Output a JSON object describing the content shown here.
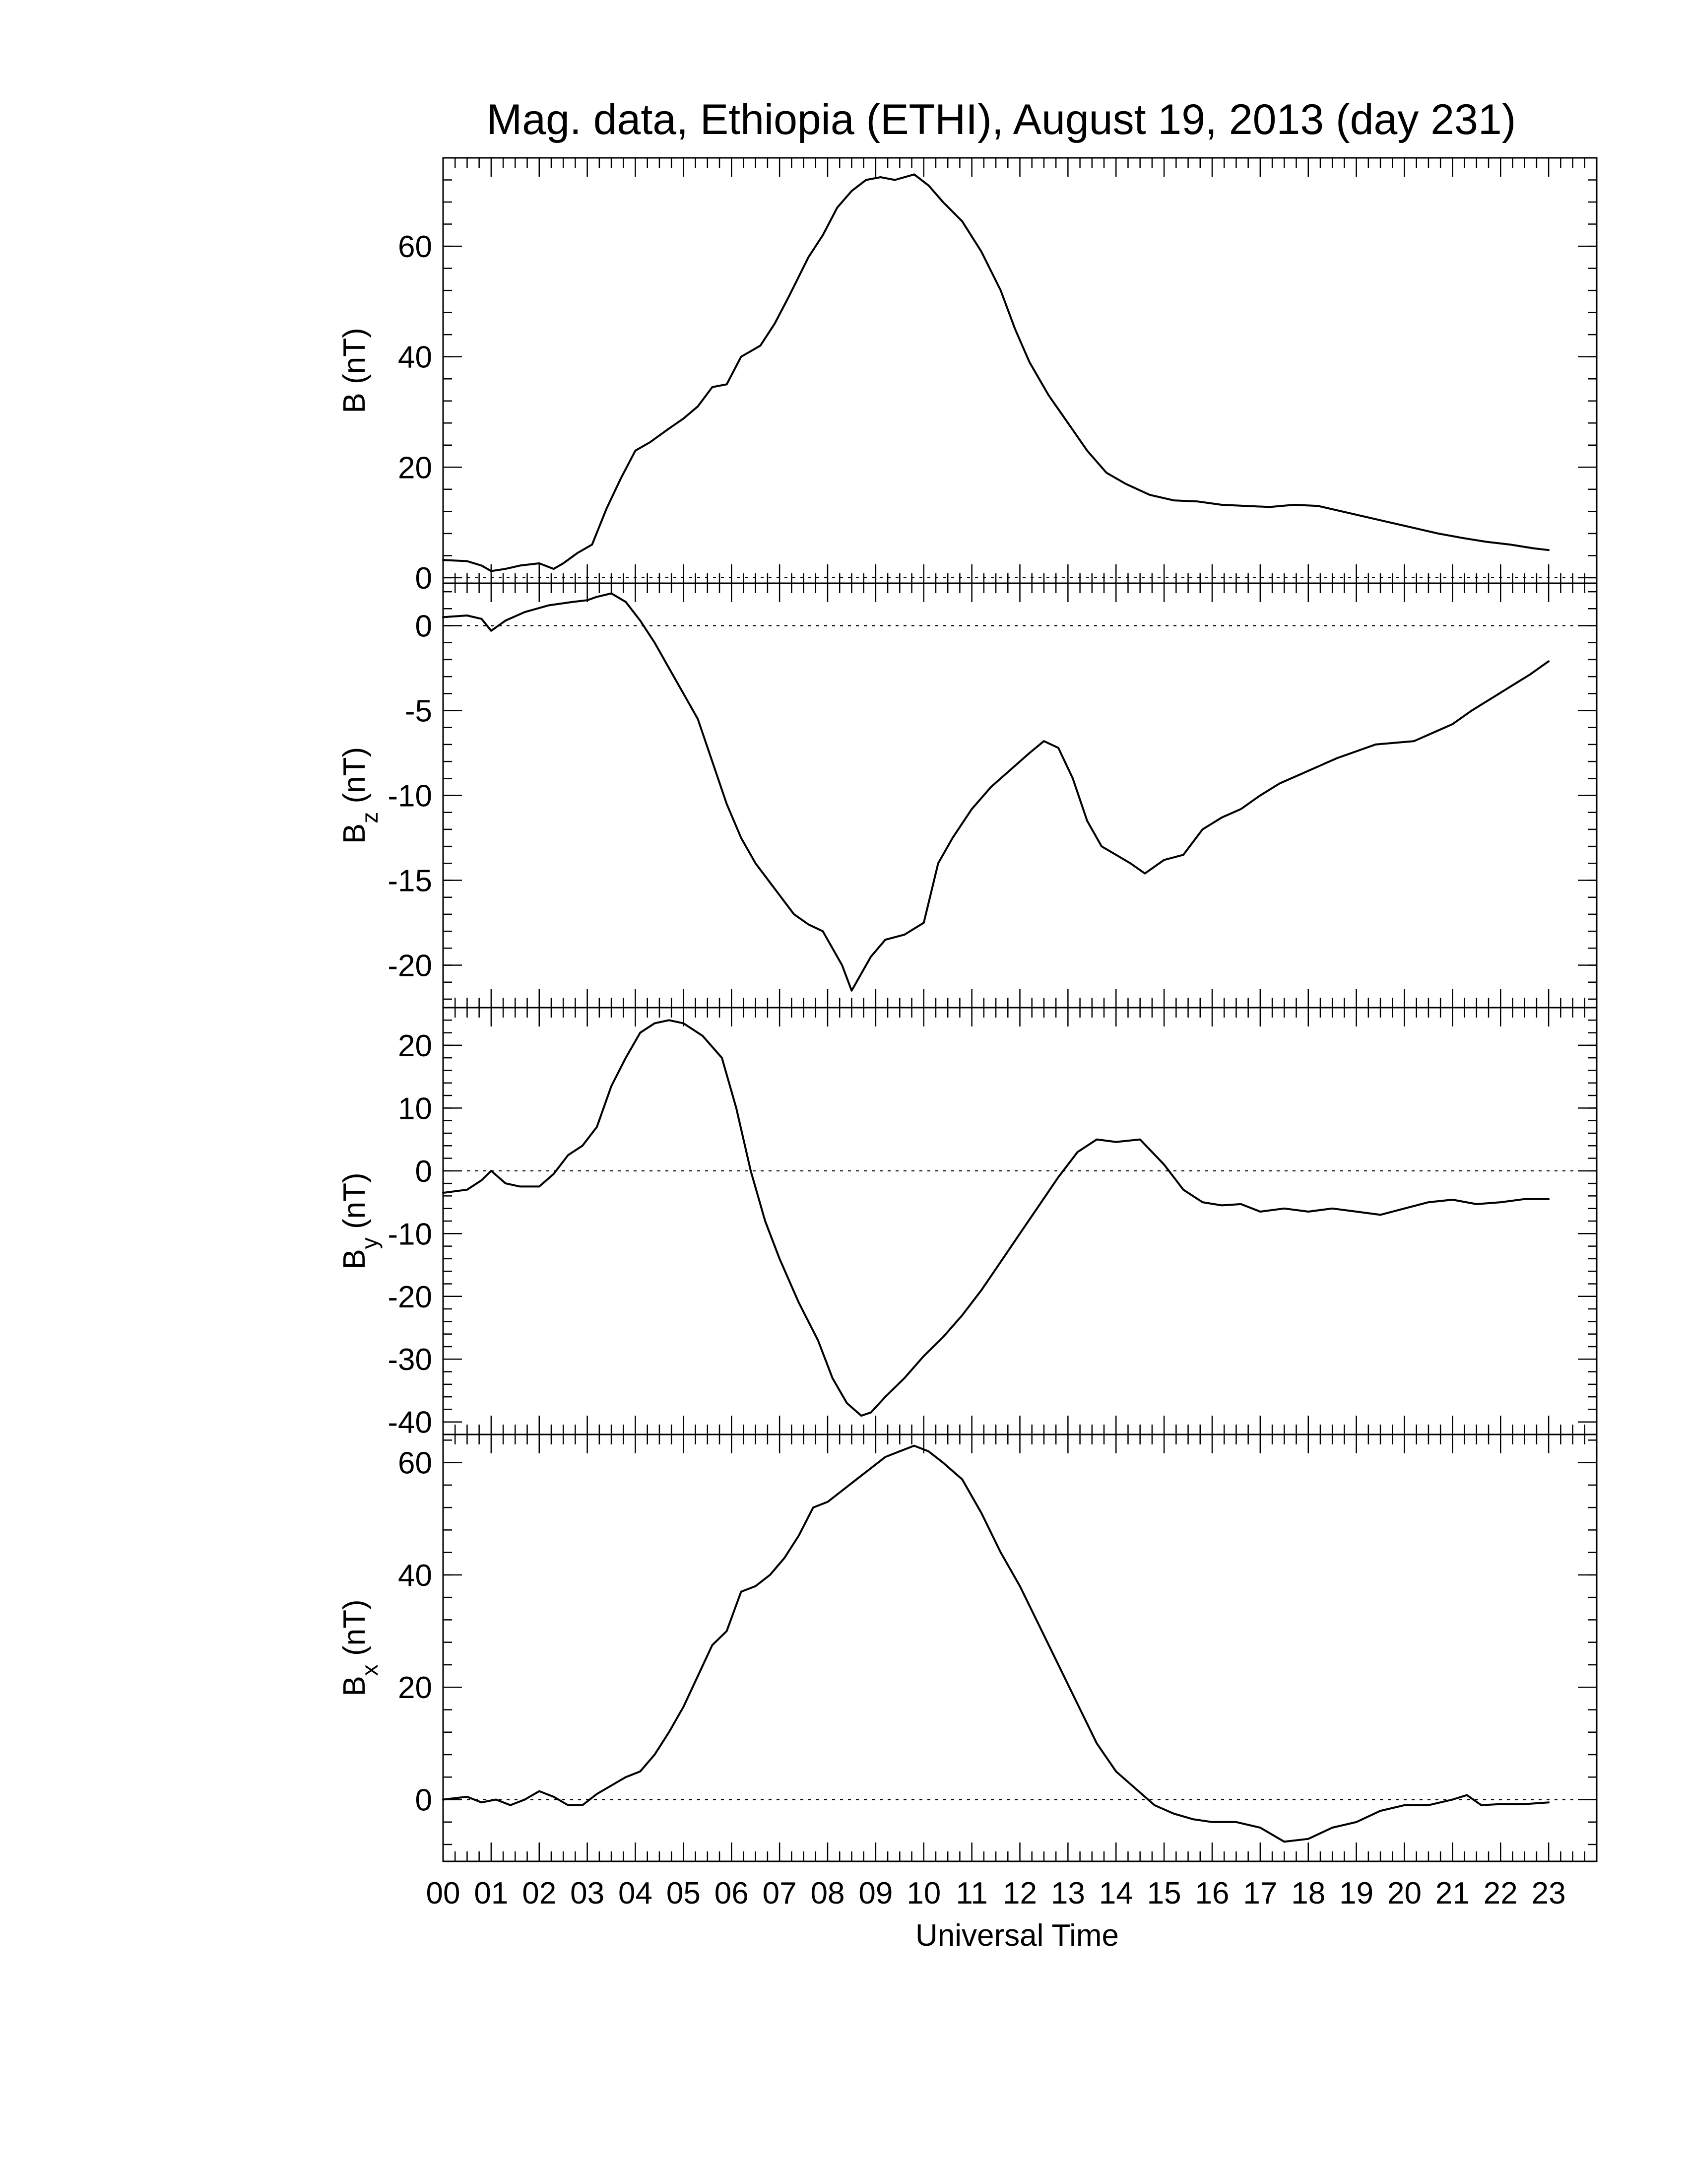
{
  "chart_data": {
    "type": "line",
    "title": "Mag. data, Ethiopia (ETHI), August 19, 2013 (day 231)",
    "xlabel": "Universal Time",
    "xlim": [
      0,
      24
    ],
    "xticks": [
      "00",
      "01",
      "02",
      "03",
      "04",
      "05",
      "06",
      "07",
      "08",
      "09",
      "10",
      "11",
      "12",
      "13",
      "14",
      "15",
      "16",
      "17",
      "18",
      "19",
      "20",
      "21",
      "22",
      "23"
    ],
    "panels": [
      {
        "id": "B",
        "ylabel": "B (nT)",
        "ylabel_main": "B",
        "ylabel_sub": "",
        "ylabel_unit": " (nT)",
        "ylim": [
          -1,
          76
        ],
        "yticks": [
          0,
          20,
          40,
          60
        ],
        "zero_line": true,
        "x": [
          0,
          0.5,
          0.8,
          1.0,
          1.3,
          1.6,
          2.0,
          2.3,
          2.5,
          2.8,
          3.1,
          3.4,
          3.7,
          4.0,
          4.3,
          4.7,
          5.0,
          5.3,
          5.6,
          5.9,
          6.2,
          6.6,
          6.9,
          7.2,
          7.6,
          7.9,
          8.2,
          8.5,
          8.8,
          9.1,
          9.4,
          9.8,
          10.1,
          10.4,
          10.8,
          11.2,
          11.6,
          11.9,
          12.2,
          12.6,
          13.0,
          13.4,
          13.8,
          14.2,
          14.7,
          15.2,
          15.7,
          16.2,
          16.7,
          17.2,
          17.7,
          18.2,
          18.7,
          19.2,
          19.7,
          20.2,
          20.7,
          21.2,
          21.7,
          22.2,
          22.7,
          23.0
        ],
        "values": [
          3.2,
          3.0,
          2.2,
          1.2,
          1.6,
          2.2,
          2.6,
          1.6,
          2.6,
          4.5,
          6.0,
          12.5,
          18.0,
          23.0,
          24.5,
          27.0,
          28.8,
          31.0,
          34.5,
          35.0,
          40.0,
          42.0,
          46.0,
          51.0,
          58.0,
          62.0,
          67.0,
          70.0,
          72.0,
          72.5,
          72.0,
          73.0,
          71.0,
          68.0,
          64.5,
          59.0,
          52.0,
          45.0,
          39.0,
          33.0,
          28.0,
          23.0,
          19.0,
          17.0,
          15.0,
          14.0,
          13.8,
          13.2,
          13.0,
          12.8,
          13.2,
          13.0,
          12.0,
          11.0,
          10.0,
          9.0,
          8.0,
          7.2,
          6.5,
          6.0,
          5.3,
          5.0
        ]
      },
      {
        "id": "Bz",
        "ylabel": "Bz (nT)",
        "ylabel_main": "B",
        "ylabel_sub": "z",
        "ylabel_unit": " (nT)",
        "ylim": [
          -22.5,
          2.5
        ],
        "yticks": [
          0,
          -5,
          -10,
          -15,
          -20
        ],
        "zero_line": true,
        "x": [
          0,
          0.5,
          0.8,
          1.0,
          1.3,
          1.7,
          2.2,
          2.7,
          3.0,
          3.2,
          3.5,
          3.8,
          4.1,
          4.4,
          4.7,
          5.0,
          5.3,
          5.6,
          5.9,
          6.2,
          6.5,
          6.9,
          7.3,
          7.6,
          7.9,
          8.1,
          8.3,
          8.5,
          8.7,
          8.9,
          9.2,
          9.6,
          10.0,
          10.3,
          10.6,
          11.0,
          11.4,
          11.8,
          12.2,
          12.5,
          12.8,
          13.1,
          13.4,
          13.7,
          14.0,
          14.3,
          14.6,
          15.0,
          15.4,
          15.8,
          16.2,
          16.6,
          17.0,
          17.4,
          17.8,
          18.2,
          18.6,
          19.0,
          19.4,
          19.8,
          20.2,
          20.6,
          21.0,
          21.4,
          21.8,
          22.2,
          22.6,
          23.0
        ],
        "values": [
          0.5,
          0.6,
          0.4,
          -0.3,
          0.3,
          0.8,
          1.2,
          1.4,
          1.5,
          1.7,
          1.9,
          1.4,
          0.3,
          -1.0,
          -2.5,
          -4.0,
          -5.5,
          -8.0,
          -10.5,
          -12.5,
          -14.0,
          -15.5,
          -17.0,
          -17.6,
          -18.0,
          -19.0,
          -20.0,
          -21.5,
          -20.5,
          -19.5,
          -18.5,
          -18.2,
          -17.5,
          -14.0,
          -12.5,
          -10.8,
          -9.5,
          -8.5,
          -7.5,
          -6.8,
          -7.2,
          -9.0,
          -11.5,
          -13.0,
          -13.5,
          -14.0,
          -14.6,
          -13.8,
          -13.5,
          -12.0,
          -11.3,
          -10.8,
          -10.0,
          -9.3,
          -8.8,
          -8.3,
          -7.8,
          -7.4,
          -7.0,
          -6.9,
          -6.8,
          -6.3,
          -5.8,
          -5.0,
          -4.3,
          -3.6,
          -2.9,
          -2.1
        ]
      },
      {
        "id": "By",
        "ylabel": "By (nT)",
        "ylabel_main": "B",
        "ylabel_sub": "y",
        "ylabel_unit": " (nT)",
        "ylim": [
          -42,
          26
        ],
        "yticks": [
          20,
          10,
          0,
          -10,
          -20,
          -30,
          -40
        ],
        "zero_line": true,
        "x": [
          0,
          0.5,
          0.8,
          1.0,
          1.3,
          1.6,
          2.0,
          2.3,
          2.6,
          2.9,
          3.2,
          3.5,
          3.8,
          4.1,
          4.4,
          4.7,
          5.0,
          5.4,
          5.8,
          6.1,
          6.4,
          6.7,
          7.0,
          7.4,
          7.8,
          8.1,
          8.4,
          8.7,
          8.9,
          9.2,
          9.6,
          10.0,
          10.4,
          10.8,
          11.2,
          11.6,
          12.0,
          12.4,
          12.8,
          13.2,
          13.6,
          14.0,
          14.5,
          15.0,
          15.4,
          15.8,
          16.2,
          16.6,
          17.0,
          17.5,
          18.0,
          18.5,
          19.0,
          19.5,
          20.0,
          20.5,
          21.0,
          21.5,
          22.0,
          22.5,
          23.0
        ],
        "values": [
          -3.5,
          -3.0,
          -1.5,
          0.0,
          -2.0,
          -2.5,
          -2.5,
          -0.5,
          2.5,
          4.0,
          7.0,
          13.5,
          18.0,
          22.0,
          23.5,
          24.0,
          23.5,
          21.5,
          18.0,
          10.0,
          0.0,
          -8.0,
          -14.0,
          -21.0,
          -27.0,
          -33.0,
          -37.0,
          -39.0,
          -38.5,
          -36.0,
          -33.0,
          -29.5,
          -26.5,
          -23.0,
          -19.0,
          -14.5,
          -10.0,
          -5.5,
          -1.0,
          3.0,
          5.0,
          4.6,
          5.0,
          1.0,
          -3.0,
          -5.0,
          -5.5,
          -5.3,
          -6.5,
          -6.0,
          -6.5,
          -6.0,
          -6.5,
          -7.0,
          -6.0,
          -5.0,
          -4.6,
          -5.3,
          -5.0,
          -4.5,
          -4.5
        ]
      },
      {
        "id": "Bx",
        "ylabel": "Bx (nT)",
        "ylabel_main": "B",
        "ylabel_sub": "x",
        "ylabel_unit": " (nT)",
        "ylim": [
          -11,
          65
        ],
        "yticks": [
          60,
          40,
          20,
          0
        ],
        "zero_line": true,
        "x": [
          0,
          0.5,
          0.8,
          1.1,
          1.4,
          1.7,
          2.0,
          2.3,
          2.6,
          2.9,
          3.2,
          3.5,
          3.8,
          4.1,
          4.4,
          4.7,
          5.0,
          5.3,
          5.6,
          5.9,
          6.2,
          6.5,
          6.8,
          7.1,
          7.4,
          7.7,
          8.0,
          8.3,
          8.6,
          8.9,
          9.2,
          9.5,
          9.8,
          10.1,
          10.4,
          10.8,
          11.2,
          11.6,
          12.0,
          12.4,
          12.8,
          13.2,
          13.6,
          14.0,
          14.4,
          14.8,
          15.2,
          15.6,
          16.0,
          16.5,
          17.0,
          17.5,
          18.0,
          18.5,
          19.0,
          19.5,
          20.0,
          20.5,
          21.0,
          21.3,
          21.6,
          22.0,
          22.5,
          23.0
        ],
        "values": [
          0.0,
          0.5,
          -0.5,
          0.0,
          -1.0,
          0.0,
          1.5,
          0.5,
          -1.0,
          -1.0,
          1.0,
          2.5,
          4.0,
          5.0,
          8.0,
          12.0,
          16.5,
          22.0,
          27.5,
          30.0,
          37.0,
          38.0,
          40.0,
          43.0,
          47.0,
          52.0,
          53.0,
          55.0,
          57.0,
          59.0,
          61.0,
          62.0,
          63.0,
          62.0,
          60.0,
          57.0,
          51.0,
          44.0,
          38.0,
          31.0,
          24.0,
          17.0,
          10.0,
          5.0,
          2.0,
          -1.0,
          -2.5,
          -3.5,
          -4.0,
          -4.0,
          -5.0,
          -7.5,
          -7.0,
          -5.0,
          -4.0,
          -2.0,
          -1.0,
          -1.0,
          0.0,
          0.8,
          -1.0,
          -0.8,
          -0.8,
          -0.5
        ]
      }
    ]
  }
}
